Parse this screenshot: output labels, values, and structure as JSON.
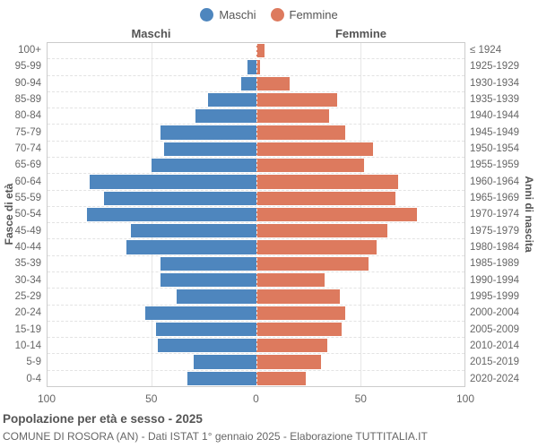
{
  "legend": {
    "male_label": "Maschi",
    "female_label": "Femmine"
  },
  "headers": {
    "male": "Maschi",
    "female": "Femmine"
  },
  "axis": {
    "left_title": "Fasce di età",
    "right_title": "Anni di nascita",
    "x_ticks": [
      "100",
      "50",
      "0",
      "50",
      "100"
    ],
    "x_tick_positions_pct": [
      0,
      25,
      50,
      75,
      100
    ]
  },
  "footer": {
    "title": "Popolazione per età e sesso - 2025",
    "subtitle": "COMUNE DI ROSORA (AN) - Dati ISTAT 1° gennaio 2025 - Elaborazione TUTTITALIA.IT"
  },
  "colors": {
    "male": "#4e86be",
    "female": "#dd7a5e",
    "grid": "#e6e6e6",
    "border": "#cccccc",
    "text": "#666666"
  },
  "chart_data": {
    "type": "bar",
    "variant": "population-pyramid",
    "title": "Popolazione per età e sesso - 2025",
    "xlabel": "",
    "ylabel_left": "Fasce di età",
    "ylabel_right": "Anni di nascita",
    "xlim": [
      -100,
      100
    ],
    "x_tick_interval": 50,
    "grid": true,
    "legend_position": "top-center",
    "categories": [
      "100+",
      "95-99",
      "90-94",
      "85-89",
      "80-84",
      "75-79",
      "70-74",
      "65-69",
      "60-64",
      "55-59",
      "50-54",
      "45-49",
      "40-44",
      "35-39",
      "30-34",
      "25-29",
      "20-24",
      "15-19",
      "10-14",
      "5-9",
      "0-4"
    ],
    "birth_years": [
      "≤ 1924",
      "1925-1929",
      "1930-1934",
      "1935-1939",
      "1940-1944",
      "1945-1949",
      "1950-1954",
      "1955-1959",
      "1960-1964",
      "1965-1969",
      "1970-1974",
      "1975-1979",
      "1980-1984",
      "1985-1989",
      "1990-1994",
      "1995-1999",
      "2000-2004",
      "2005-2009",
      "2010-2014",
      "2015-2019",
      "2020-2024"
    ],
    "series": [
      {
        "name": "Maschi",
        "color": "#4e86be",
        "values": [
          0,
          4,
          7,
          23,
          29,
          46,
          44,
          50,
          80,
          73,
          81,
          60,
          62,
          46,
          46,
          38,
          53,
          48,
          47,
          30,
          33
        ]
      },
      {
        "name": "Femmine",
        "color": "#dd7a5e",
        "values": [
          4,
          2,
          16,
          39,
          35,
          43,
          56,
          52,
          68,
          67,
          77,
          63,
          58,
          54,
          33,
          40,
          43,
          41,
          34,
          31,
          24
        ]
      }
    ]
  }
}
